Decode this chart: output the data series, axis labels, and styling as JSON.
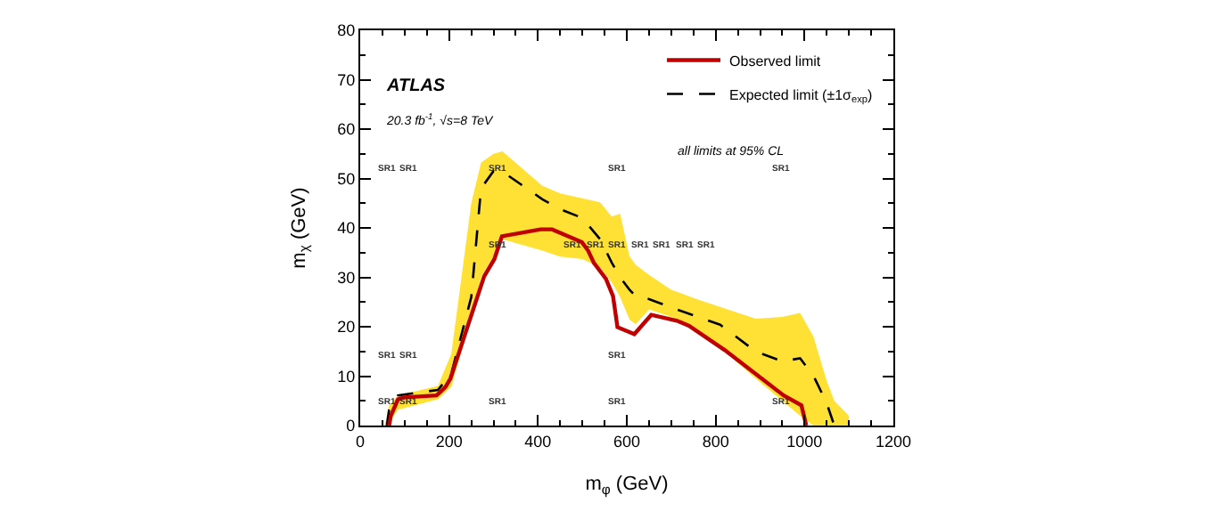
{
  "chart_data": {
    "type": "line",
    "xlabel": "m$_{φ}$ (GeV)",
    "ylabel": "m$_{χ}$ (GeV)",
    "xlim": [
      0,
      1200
    ],
    "xticks": [
      0,
      200,
      400,
      600,
      800,
      1000,
      1200
    ],
    "ylim": [
      0,
      80
    ],
    "yticks": [
      0,
      10,
      20,
      30,
      40,
      50,
      60,
      70,
      80
    ],
    "legend": "top right",
    "series": [
      {
        "name": "Observed limit",
        "color": "#c00000",
        "line_style": "solid",
        "x": [
          65,
          69,
          85,
          99,
          172,
          192,
          203,
          279,
          302,
          319,
          406,
          432,
          499,
          513,
          526,
          553,
          569,
          579,
          617,
          655,
          713,
          740,
          820,
          953,
          993,
          1004
        ],
        "values": [
          0,
          2,
          5.3,
          5.7,
          6.1,
          7.8,
          9.5,
          30.2,
          33.7,
          38.3,
          39.7,
          39.7,
          37.1,
          35.4,
          32.9,
          29.7,
          26.2,
          19.9,
          18.5,
          22.4,
          21.2,
          20.2,
          15.3,
          6.1,
          4.1,
          0
        ]
      },
      {
        "name": "Expected limit (±1σ$_{exp}$)",
        "color": "#000000",
        "line_style": "dashed",
        "x": [
          55,
          60,
          65,
          85,
          175,
          205,
          250,
          272,
          300,
          320,
          410,
          450,
          500,
          540,
          566,
          585,
          606,
          620,
          650,
          700,
          760,
          810,
          890,
          950,
          990,
          1020,
          1050,
          1067,
          1100
        ],
        "values": [
          null,
          0,
          3.2,
          6.1,
          7.2,
          10.5,
          26,
          48,
          51.5,
          51.4,
          45.8,
          43.8,
          42,
          37.7,
          33,
          30,
          27.5,
          26.2,
          25.6,
          23.9,
          22,
          20.4,
          15,
          13,
          13.6,
          10.1,
          4.5,
          0,
          null
        ],
        "upper": [
          0,
          2,
          4,
          6.1,
          8,
          14.5,
          45,
          53.2,
          55,
          55.5,
          48.5,
          47,
          46,
          45.2,
          42.3,
          42.9,
          34.3,
          32.5,
          30.5,
          27.5,
          25.5,
          24,
          21.6,
          22,
          22.8,
          18,
          9,
          5,
          2
        ],
        "lower": [
          0,
          0,
          0.5,
          3.2,
          5.3,
          7.8,
          22,
          30,
          34.3,
          37.7,
          35.4,
          34.2,
          33.7,
          32,
          29,
          26,
          21.5,
          20.5,
          23.5,
          22,
          19,
          15.8,
          9.5,
          5,
          2,
          0,
          0,
          0,
          0
        ]
      }
    ],
    "annotations": [
      "ATLAS",
      "20.3 fb$^{-1}$, √s=8 TeV",
      "all limits at 95% CL",
      "SR1",
      "SR1",
      "SR1",
      "SR1",
      "SR1",
      "SR1",
      "SR1",
      "SR1",
      "SR1",
      "SR1",
      "SR1",
      "SR1",
      "SR1",
      "SR1",
      "SR1",
      "SR1",
      "SR1",
      "SR1",
      "SR1",
      "SR1",
      "SR1"
    ]
  }
}
